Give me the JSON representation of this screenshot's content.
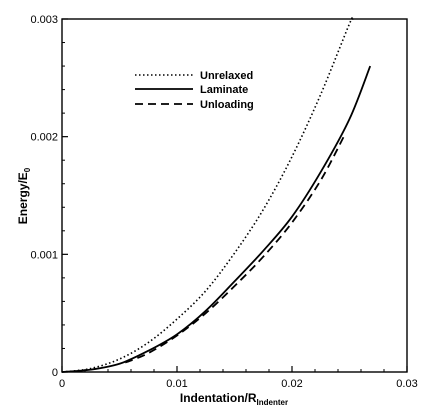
{
  "chart_data": {
    "type": "line",
    "xlabel": {
      "main": "Indentation/R",
      "sub": "Indenter"
    },
    "ylabel": {
      "main": "Energy/E",
      "sub": "0"
    },
    "xlim": [
      0,
      0.03
    ],
    "ylim": [
      0,
      0.003
    ],
    "xticks": [
      0,
      0.01,
      0.02,
      0.03
    ],
    "xtick_labels": [
      "0",
      "0.01",
      "0.02",
      "0.03"
    ],
    "yticks": [
      0,
      0.001,
      0.002,
      0.003
    ],
    "ytick_labels": [
      "0",
      "0.001",
      "0.002",
      "0.003"
    ],
    "grid": false,
    "legend_position": "upper-left-center",
    "series": [
      {
        "name": "Unrelaxed",
        "style": "dotted",
        "color": "#000000",
        "x": [
          0,
          0.0025,
          0.005,
          0.0075,
          0.01,
          0.0125,
          0.015,
          0.0175,
          0.02,
          0.0225,
          0.025,
          0.0253
        ],
        "y": [
          0,
          3e-05,
          0.00011,
          0.00025,
          0.00045,
          0.00069,
          0.00101,
          0.00138,
          0.00183,
          0.00236,
          0.00296,
          0.003
        ]
      },
      {
        "name": "Laminate",
        "style": "solid",
        "color": "#000000",
        "x": [
          0,
          0.0025,
          0.005,
          0.0075,
          0.01,
          0.0125,
          0.015,
          0.0175,
          0.02,
          0.0225,
          0.025,
          0.0268
        ],
        "y": [
          0,
          2e-05,
          7e-05,
          0.00018,
          0.00032,
          0.00052,
          0.00077,
          0.00103,
          0.00132,
          0.0017,
          0.00215,
          0.0026
        ]
      },
      {
        "name": "Unloading",
        "style": "dashed",
        "color": "#000000",
        "x": [
          0.0055,
          0.0075,
          0.01,
          0.0125,
          0.015,
          0.0175,
          0.02,
          0.0225,
          0.0245
        ],
        "y": [
          8e-05,
          0.00016,
          0.00031,
          0.0005,
          0.00073,
          0.00098,
          0.00127,
          0.00163,
          0.002
        ]
      }
    ]
  }
}
